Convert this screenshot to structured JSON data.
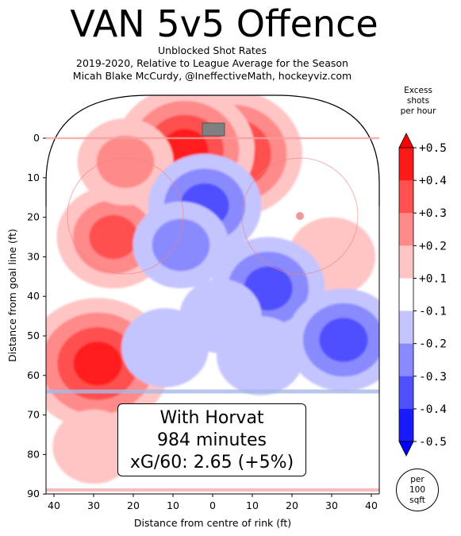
{
  "header": {
    "title": "VAN 5v5 Offence",
    "subtitle_1": "Unblocked Shot Rates",
    "subtitle_2": "2019-2020, Relative to League Average for the Season",
    "subtitle_3": "Micah Blake McCurdy, @IneffectiveMath, hockeyviz.com"
  },
  "annotation": {
    "line_1": "With Horvat",
    "line_2": "984 minutes",
    "line_3": "xG/60: 2.65 (+5%)"
  },
  "colorbar": {
    "title_1": "Excess",
    "title_2": "shots",
    "title_3": "per hour",
    "unit_1": "per",
    "unit_2": "100",
    "unit_3": "sqft",
    "ticks": [
      "+0.5",
      "+0.4",
      "+0.3",
      "+0.2",
      "+0.1",
      "-0.1",
      "-0.2",
      "-0.3",
      "-0.4",
      "-0.5"
    ],
    "colors": [
      "#ff1a1a",
      "#ff5050",
      "#ff8a8a",
      "#ffc4c4",
      "#ffffff",
      "#c4c4ff",
      "#8a8aff",
      "#5050ff",
      "#1a1aff"
    ],
    "top_arrow_color": "#ff0000",
    "bottom_arrow_color": "#0000ff"
  },
  "chart_data": {
    "type": "heatmap",
    "title": "VAN 5v5 Offence",
    "xlabel": "Distance from centre of rink (ft)",
    "ylabel": "Distance from goal line (ft)",
    "xlim": [
      -42.5,
      42.5
    ],
    "ylim": [
      90,
      -11
    ],
    "x_ticks": [
      -40,
      -30,
      -20,
      -10,
      0,
      10,
      20,
      30,
      40
    ],
    "x_tick_labels": [
      "40",
      "30",
      "20",
      "10",
      "0",
      "10",
      "20",
      "30",
      "40"
    ],
    "y_ticks": [
      0,
      10,
      20,
      30,
      40,
      50,
      60,
      70,
      80,
      90
    ],
    "y_tick_labels": [
      "0",
      "10",
      "20",
      "30",
      "40",
      "50",
      "60",
      "70",
      "80",
      "90"
    ],
    "value_range": [
      -0.5,
      0.5
    ],
    "hotspots": [
      {
        "x": 5,
        "y": 4,
        "value": 0.45
      },
      {
        "x": -7,
        "y": 3,
        "value": 0.45
      },
      {
        "x": -25,
        "y": 25,
        "value": 0.3
      },
      {
        "x": -29,
        "y": 57,
        "value": 0.48
      },
      {
        "x": -22,
        "y": 6,
        "value": 0.2
      },
      {
        "x": 30,
        "y": 30,
        "value": 0.15
      },
      {
        "x": -30,
        "y": 78,
        "value": 0.12
      },
      {
        "x": -2,
        "y": 17,
        "value": -0.3
      },
      {
        "x": 14,
        "y": 38,
        "value": -0.3
      },
      {
        "x": 33,
        "y": 51,
        "value": -0.3
      },
      {
        "x": 12,
        "y": 55,
        "value": -0.15
      },
      {
        "x": 2,
        "y": 45,
        "value": -0.12
      },
      {
        "x": -12,
        "y": 53,
        "value": -0.15
      },
      {
        "x": -8,
        "y": 27,
        "value": -0.2
      }
    ]
  }
}
